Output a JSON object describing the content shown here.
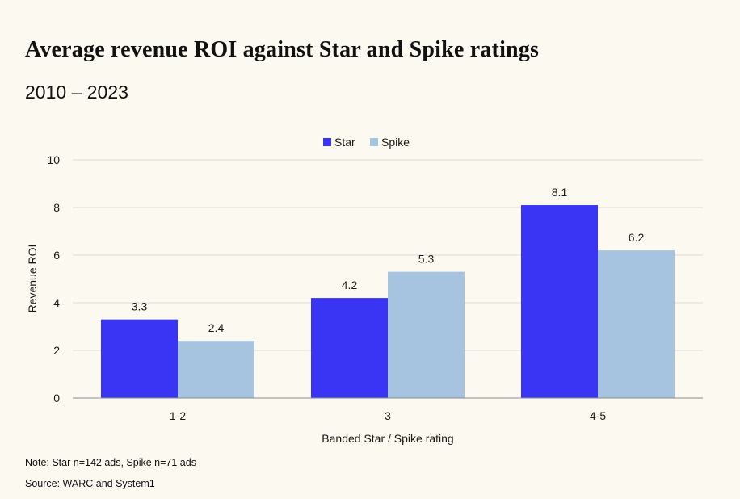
{
  "header": {
    "title": "Average revenue ROI against Star and Spike ratings",
    "subtitle": "2010 – 2023"
  },
  "footer": {
    "note": "Note: Star n=142 ads, Spike n=71 ads",
    "source": "Source: WARC and System1"
  },
  "colors": {
    "star": "#3a35f5",
    "spike": "#a6c4e0",
    "grid": "#dcdcdc",
    "axis": "#8a8a8a"
  },
  "chart_data": {
    "type": "bar",
    "title": "Average revenue ROI against Star and Spike ratings",
    "subtitle": "2010 – 2023",
    "categories": [
      "1-2",
      "3",
      "4-5"
    ],
    "series": [
      {
        "name": "Star",
        "values": [
          3.3,
          4.2,
          8.1
        ],
        "color": "#3a35f5"
      },
      {
        "name": "Spike",
        "values": [
          2.4,
          5.3,
          6.2
        ],
        "color": "#a6c4e0"
      }
    ],
    "xlabel": "Banded Star / Spike rating",
    "ylabel": "Revenue ROI",
    "ylim": [
      0,
      10
    ],
    "yticks": [
      0,
      2,
      4,
      6,
      8,
      10
    ],
    "grid": true,
    "legend": "top-center",
    "data_labels": true
  }
}
